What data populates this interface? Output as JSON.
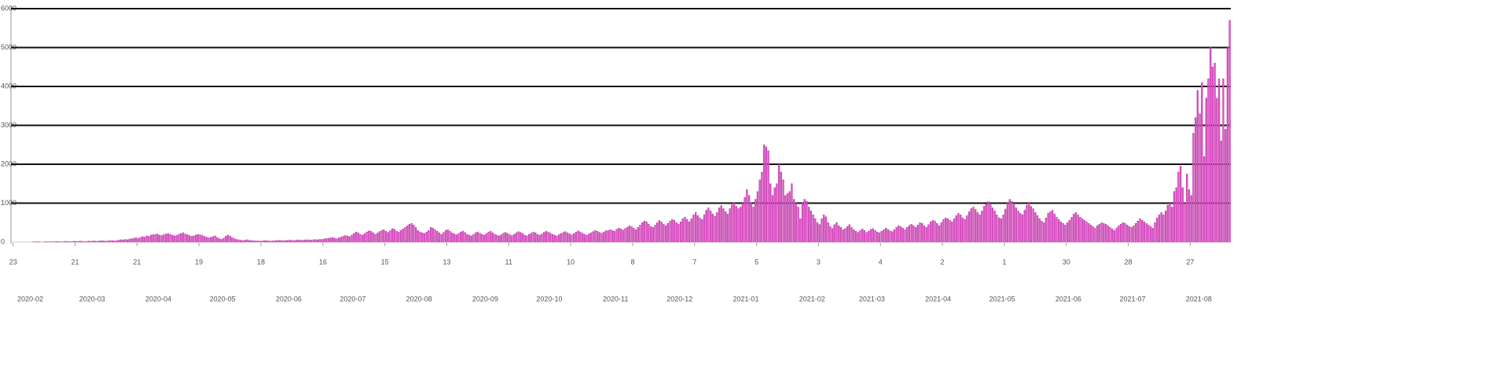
{
  "chart_data": {
    "type": "bar",
    "color": "#dd55c8",
    "xlim": [
      0,
      571
    ],
    "xticks": [
      {
        "value": 1,
        "label": "23"
      },
      {
        "value": 30,
        "label": "21"
      },
      {
        "value": 59,
        "label": "21"
      },
      {
        "value": 88,
        "label": "19"
      },
      {
        "value": 117,
        "label": "18"
      },
      {
        "value": 146,
        "label": "16"
      },
      {
        "value": 175,
        "label": "15"
      },
      {
        "value": 204,
        "label": "13"
      },
      {
        "value": 233,
        "label": "11"
      },
      {
        "value": 262,
        "label": "10"
      },
      {
        "value": 291,
        "label": "8"
      },
      {
        "value": 320,
        "label": "7"
      },
      {
        "value": 349,
        "label": "5"
      },
      {
        "value": 378,
        "label": "3"
      },
      {
        "value": 407,
        "label": "4"
      },
      {
        "value": 436,
        "label": "2"
      },
      {
        "value": 465,
        "label": "1"
      },
      {
        "value": 494,
        "label": "30"
      },
      {
        "value": 523,
        "label": "28"
      },
      {
        "value": 552,
        "label": "27"
      }
    ],
    "month_ticks": [
      {
        "value": 9,
        "label": "2020-02"
      },
      {
        "value": 38,
        "label": "2020-03"
      },
      {
        "value": 69,
        "label": "2020-04"
      },
      {
        "value": 99,
        "label": "2020-05"
      },
      {
        "value": 130,
        "label": "2020-06"
      },
      {
        "value": 160,
        "label": "2020-07"
      },
      {
        "value": 191,
        "label": "2020-08"
      },
      {
        "value": 222,
        "label": "2020-09"
      },
      {
        "value": 252,
        "label": "2020-10"
      },
      {
        "value": 283,
        "label": "2020-11"
      },
      {
        "value": 313,
        "label": "2020-12"
      },
      {
        "value": 344,
        "label": "2021-01"
      },
      {
        "value": 375,
        "label": "2021-02"
      },
      {
        "value": 403,
        "label": "2021-03"
      },
      {
        "value": 434,
        "label": "2021-04"
      },
      {
        "value": 464,
        "label": "2021-05"
      },
      {
        "value": 495,
        "label": "2021-06"
      },
      {
        "value": 525,
        "label": "2021-07"
      },
      {
        "value": 556,
        "label": "2021-08"
      }
    ],
    "ylim": [
      0,
      6000
    ],
    "yticks": [
      0,
      1000,
      2000,
      3000,
      4000,
      5000,
      6000
    ],
    "grid": true,
    "values": [
      0,
      0,
      0,
      0,
      0,
      0,
      0,
      0,
      0,
      0,
      5,
      5,
      10,
      5,
      0,
      5,
      10,
      5,
      10,
      5,
      10,
      15,
      10,
      5,
      10,
      20,
      15,
      10,
      10,
      20,
      20,
      15,
      25,
      20,
      10,
      20,
      25,
      20,
      30,
      25,
      20,
      30,
      35,
      30,
      25,
      30,
      40,
      35,
      30,
      40,
      50,
      60,
      55,
      70,
      60,
      80,
      90,
      100,
      110,
      90,
      120,
      140,
      130,
      160,
      150,
      180,
      190,
      200,
      210,
      180,
      170,
      190,
      210,
      220,
      200,
      180,
      160,
      170,
      200,
      220,
      240,
      210,
      190,
      170,
      150,
      160,
      180,
      200,
      190,
      170,
      150,
      130,
      110,
      120,
      140,
      160,
      120,
      90,
      70,
      100,
      150,
      180,
      160,
      120,
      90,
      70,
      60,
      50,
      40,
      50,
      60,
      45,
      40,
      35,
      30,
      30,
      25,
      30,
      35,
      40,
      30,
      25,
      30,
      35,
      40,
      45,
      40,
      35,
      40,
      45,
      50,
      45,
      40,
      50,
      55,
      50,
      45,
      55,
      60,
      55,
      50,
      60,
      65,
      60,
      70,
      70,
      80,
      90,
      100,
      110,
      120,
      100,
      90,
      110,
      130,
      150,
      170,
      160,
      140,
      180,
      220,
      260,
      240,
      200,
      180,
      220,
      260,
      290,
      280,
      240,
      200,
      230,
      270,
      300,
      320,
      280,
      250,
      300,
      350,
      330,
      280,
      260,
      300,
      340,
      380,
      420,
      460,
      480,
      440,
      380,
      300,
      260,
      240,
      220,
      260,
      300,
      380,
      360,
      320,
      280,
      240,
      200,
      250,
      300,
      320,
      280,
      240,
      210,
      190,
      220,
      260,
      280,
      250,
      200,
      180,
      160,
      200,
      240,
      260,
      230,
      200,
      180,
      220,
      260,
      280,
      240,
      200,
      180,
      160,
      190,
      230,
      250,
      220,
      190,
      170,
      200,
      240,
      270,
      250,
      220,
      180,
      160,
      200,
      230,
      260,
      240,
      200,
      180,
      210,
      250,
      280,
      260,
      230,
      200,
      180,
      160,
      190,
      220,
      250,
      270,
      240,
      210,
      190,
      220,
      260,
      290,
      260,
      230,
      200,
      180,
      210,
      240,
      270,
      300,
      280,
      250,
      230,
      260,
      290,
      300,
      320,
      300,
      280,
      330,
      360,
      340,
      310,
      350,
      380,
      420,
      400,
      360,
      320,
      380,
      440,
      500,
      540,
      520,
      460,
      400,
      380,
      440,
      500,
      560,
      520,
      460,
      420,
      480,
      540,
      580,
      560,
      500,
      460,
      520,
      600,
      640,
      580,
      520,
      600,
      700,
      760,
      680,
      620,
      580,
      700,
      820,
      880,
      800,
      720,
      660,
      760,
      880,
      940,
      860,
      780,
      720,
      860,
      960,
      1000,
      920,
      860,
      900,
      1000,
      1150,
      1350,
      1200,
      1000,
      900,
      1100,
      1300,
      1600,
      1800,
      2500,
      2450,
      2350,
      1500,
      1200,
      1400,
      1500,
      2000,
      1800,
      1600,
      1200,
      1250,
      1300,
      1500,
      1100,
      1000,
      900,
      600,
      1000,
      1100,
      1050,
      900,
      800,
      700,
      600,
      500,
      450,
      600,
      700,
      650,
      500,
      400,
      350,
      450,
      500,
      420,
      380,
      320,
      350,
      400,
      450,
      380,
      320,
      280,
      250,
      300,
      340,
      300,
      250,
      280,
      330,
      350,
      300,
      260,
      240,
      280,
      320,
      360,
      330,
      290,
      270,
      320,
      380,
      420,
      400,
      360,
      320,
      380,
      430,
      460,
      420,
      380,
      440,
      500,
      480,
      420,
      380,
      450,
      520,
      560,
      540,
      480,
      420,
      500,
      580,
      620,
      600,
      560,
      520,
      600,
      680,
      740,
      700,
      620,
      580,
      680,
      780,
      860,
      900,
      840,
      760,
      700,
      800,
      920,
      980,
      1040,
      960,
      880,
      800,
      700,
      620,
      600,
      700,
      850,
      1000,
      1100,
      1050,
      960,
      880,
      800,
      740,
      700,
      820,
      950,
      1000,
      920,
      860,
      760,
      680,
      600,
      540,
      500,
      620,
      740,
      780,
      820,
      720,
      640,
      580,
      520,
      480,
      440,
      500,
      560,
      640,
      720,
      760,
      700,
      640,
      600,
      560,
      520,
      480,
      440,
      400,
      360,
      420,
      460,
      500,
      480,
      460,
      420,
      380,
      340,
      300,
      360,
      420,
      460,
      500,
      480,
      440,
      400,
      380,
      420,
      480,
      540,
      600,
      560,
      520,
      480,
      440,
      400,
      360,
      500,
      620,
      700,
      760,
      700,
      800,
      950,
      1000,
      900,
      1300,
      1400,
      1800,
      1950,
      1400,
      1000,
      1750,
      1350,
      1200,
      2800,
      3200,
      3900,
      3300,
      4100,
      2200,
      3700,
      4200,
      5000,
      4500,
      4600,
      3700,
      4200,
      2600,
      4200,
      2900,
      5000,
      5700
    ]
  }
}
